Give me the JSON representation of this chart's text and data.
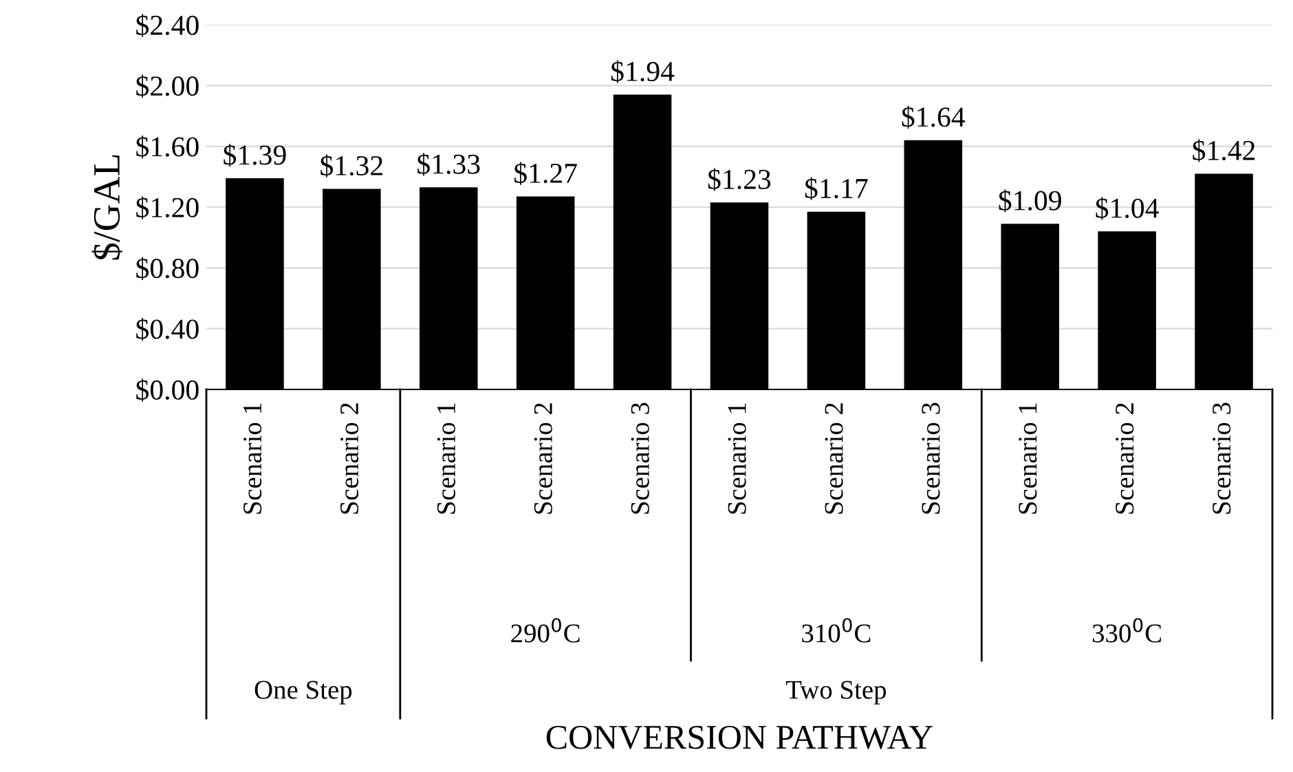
{
  "chart_data": {
    "type": "bar",
    "ylabel": "$/GAL",
    "categories": [
      "Scenario 1",
      "Scenario 2",
      "Scenario 1",
      "Scenario 2",
      "Scenario 3",
      "Scenario 1",
      "Scenario 2",
      "Scenario 3",
      "Scenario 1",
      "Scenario 2",
      "Scenario 3"
    ],
    "values": [
      1.39,
      1.32,
      1.33,
      1.27,
      1.94,
      1.23,
      1.17,
      1.64,
      1.09,
      1.04,
      1.42
    ],
    "value_labels": [
      "$1.39",
      "$1.32",
      "$1.33",
      "$1.27",
      "$1.94",
      "$1.23",
      "$1.17",
      "$1.64",
      "$1.09",
      "$1.04",
      "$1.42"
    ],
    "color": "#000000",
    "ylim": [
      0,
      2.4
    ],
    "yticks": [
      {
        "value": 0,
        "label": "$0.00"
      },
      {
        "value": 0.4,
        "label": "$0.40"
      },
      {
        "value": 0.8,
        "label": "$0.80"
      },
      {
        "value": 1.2,
        "label": "$1.20"
      },
      {
        "value": 1.6,
        "label": "$1.60"
      },
      {
        "value": 2.0,
        "label": "$2.00"
      },
      {
        "value": 2.4,
        "label": "$2.40"
      }
    ],
    "grid": "y",
    "legend": false,
    "annotations": [
      "290$^{0}$C",
      "310$^{0}$C",
      "330$^{0}$C",
      "One Step",
      "Two Step",
      "CONVERSION PATHWAY"
    ]
  }
}
